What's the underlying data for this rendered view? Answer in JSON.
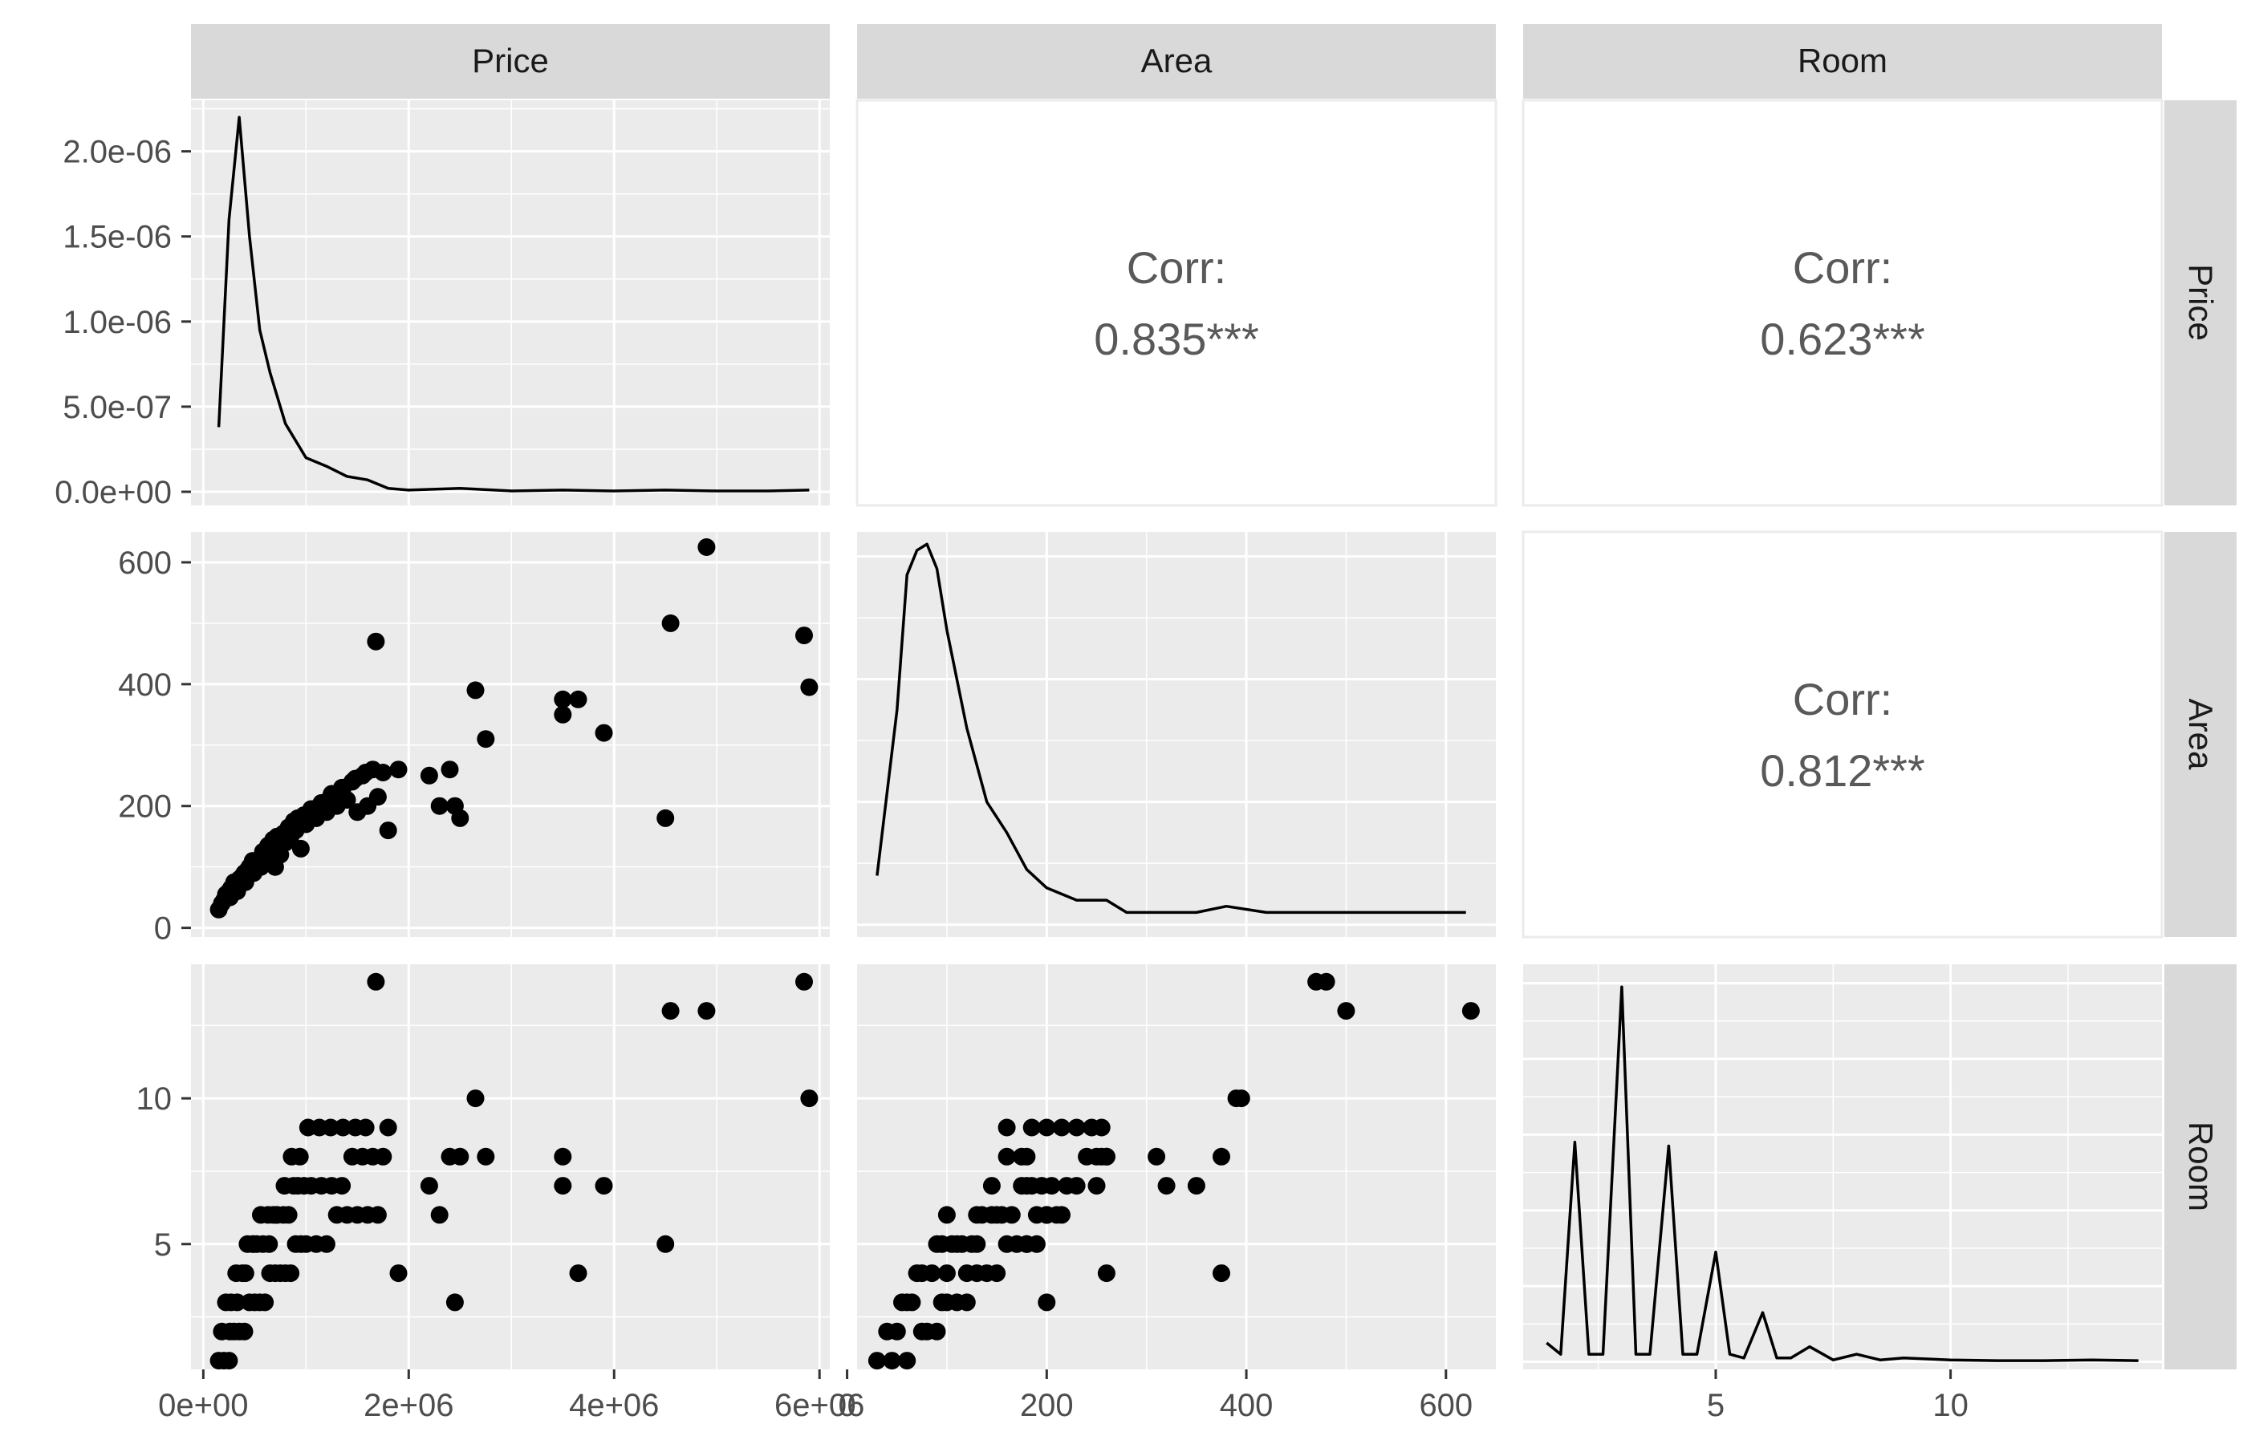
{
  "chart_data": {
    "type": "scatter-matrix",
    "variables": [
      "Price",
      "Area",
      "Room"
    ],
    "strips": {
      "top": [
        "Price",
        "Area",
        "Room"
      ],
      "right": [
        "Price",
        "Area",
        "Room"
      ]
    },
    "axes": {
      "Price": {
        "range": [
          0,
          6000000
        ],
        "ticks": [
          0,
          2000000,
          4000000,
          6000000
        ],
        "tick_labels": [
          "0e+00",
          "2e+06",
          "4e+06",
          "6e+06"
        ]
      },
      "Area": {
        "range": [
          0,
          650
        ],
        "ticks": [
          0,
          200,
          400,
          600
        ],
        "tick_labels": [
          "0",
          "200",
          "400",
          "600"
        ]
      },
      "Room": {
        "range": [
          1,
          14
        ],
        "ticks": [
          5,
          10
        ],
        "tick_labels": [
          "5",
          "10"
        ]
      }
    },
    "density_y_axis": {
      "range": [
        0,
        2.3e-06
      ],
      "ticks": [
        0,
        5e-07,
        1e-06,
        1.5e-06,
        2e-06
      ],
      "tick_labels": [
        "0.0e+00",
        "5.0e-07",
        "1.0e-06",
        "1.5e-06",
        "2.0e-06"
      ]
    },
    "correlations": [
      {
        "pair": "Price-Area",
        "label": "Corr:",
        "value": "0.835***"
      },
      {
        "pair": "Price-Room",
        "label": "Corr:",
        "value": "0.623***"
      },
      {
        "pair": "Area-Room",
        "label": "Corr:",
        "value": "0.812***"
      }
    ],
    "density_price": {
      "x": [
        150000,
        250000,
        350000,
        450000,
        550000,
        650000,
        800000,
        1000000,
        1200000,
        1400000,
        1600000,
        1800000,
        2000000,
        2500000,
        3000000,
        3500000,
        4000000,
        4500000,
        5000000,
        5500000,
        5900000
      ],
      "y": [
        3.8e-07,
        1.6e-06,
        2.2e-06,
        1.5e-06,
        9.5e-07,
        7e-07,
        4e-07,
        2e-07,
        1.5e-07,
        9e-08,
        7e-08,
        2e-08,
        1e-08,
        2e-08,
        5e-09,
        1e-08,
        5e-09,
        1e-08,
        5e-09,
        5e-09,
        1e-08
      ]
    },
    "density_area": {
      "x": [
        30,
        50,
        60,
        70,
        80,
        90,
        100,
        120,
        140,
        160,
        180,
        200,
        230,
        260,
        280,
        320,
        350,
        380,
        420,
        480,
        550,
        620
      ],
      "y": [
        0.08,
        0.35,
        0.57,
        0.61,
        0.62,
        0.58,
        0.48,
        0.32,
        0.2,
        0.15,
        0.09,
        0.06,
        0.04,
        0.04,
        0.02,
        0.02,
        0.02,
        0.03,
        0.02,
        0.02,
        0.02,
        0.02
      ]
    },
    "density_room": {
      "x": [
        1.4,
        1.7,
        2,
        2.3,
        2.6,
        3,
        3.3,
        3.6,
        4,
        4.3,
        4.6,
        5,
        5.3,
        5.6,
        6,
        6.3,
        6.6,
        7,
        7.5,
        8,
        8.5,
        9,
        10,
        11,
        12,
        13,
        14
      ],
      "y": [
        0.05,
        0.02,
        0.58,
        0.02,
        0.02,
        0.99,
        0.02,
        0.02,
        0.57,
        0.02,
        0.02,
        0.29,
        0.02,
        0.01,
        0.13,
        0.01,
        0.01,
        0.04,
        0.005,
        0.02,
        0.005,
        0.01,
        0.005,
        0.003,
        0.003,
        0.005,
        0.003
      ]
    },
    "points": {
      "price": [
        150000,
        200000,
        250000,
        300000,
        350000,
        400000,
        450000,
        500000,
        550000,
        600000,
        650000,
        700000,
        750000,
        800000,
        850000,
        900000,
        950000,
        1000000,
        1100000,
        1200000,
        1300000,
        1400000,
        1500000,
        1600000,
        1700000,
        180000,
        220000,
        270000,
        320000,
        380000,
        430000,
        480000,
        520000,
        580000,
        630000,
        680000,
        720000,
        780000,
        830000,
        880000,
        920000,
        980000,
        1050000,
        1150000,
        1250000,
        1350000,
        1450000,
        1550000,
        1650000,
        1750000,
        1900000,
        260000,
        330000,
        410000,
        490000,
        560000,
        640000,
        710000,
        790000,
        860000,
        940000,
        1020000,
        1130000,
        1240000,
        1360000,
        1480000,
        1580000,
        1680000,
        1800000,
        2200000,
        2300000,
        2400000,
        2450000,
        2500000,
        2650000,
        2750000,
        3500000,
        3500000,
        3650000,
        3900000,
        4500000,
        4550000,
        4900000,
        5850000,
        5900000
      ],
      "area": [
        30,
        45,
        60,
        75,
        80,
        90,
        100,
        95,
        110,
        120,
        130,
        100,
        120,
        140,
        150,
        160,
        130,
        170,
        180,
        190,
        200,
        210,
        190,
        200,
        215,
        40,
        55,
        65,
        70,
        85,
        95,
        110,
        105,
        125,
        135,
        145,
        150,
        155,
        165,
        175,
        180,
        185,
        195,
        205,
        220,
        230,
        240,
        250,
        260,
        255,
        260,
        50,
        60,
        75,
        90,
        100,
        115,
        130,
        145,
        160,
        175,
        185,
        200,
        215,
        230,
        245,
        255,
        470,
        160,
        250,
        200,
        260,
        200,
        180,
        390,
        310,
        375,
        350,
        375,
        320,
        180,
        500,
        625,
        480,
        395
      ],
      "room": [
        1,
        1,
        1,
        2,
        2,
        2,
        3,
        3,
        3,
        3,
        4,
        4,
        4,
        4,
        4,
        5,
        5,
        5,
        5,
        5,
        6,
        6,
        6,
        6,
        6,
        2,
        3,
        3,
        4,
        4,
        5,
        5,
        5,
        5,
        6,
        6,
        6,
        6,
        6,
        7,
        7,
        7,
        7,
        7,
        7,
        7,
        8,
        8,
        8,
        8,
        4,
        2,
        3,
        4,
        5,
        6,
        5,
        6,
        7,
        8,
        8,
        9,
        9,
        9,
        9,
        9,
        9,
        14,
        9,
        7,
        6,
        8,
        3,
        8,
        10,
        8,
        8,
        7,
        4,
        7,
        5,
        13,
        13,
        14,
        10
      ]
    }
  }
}
